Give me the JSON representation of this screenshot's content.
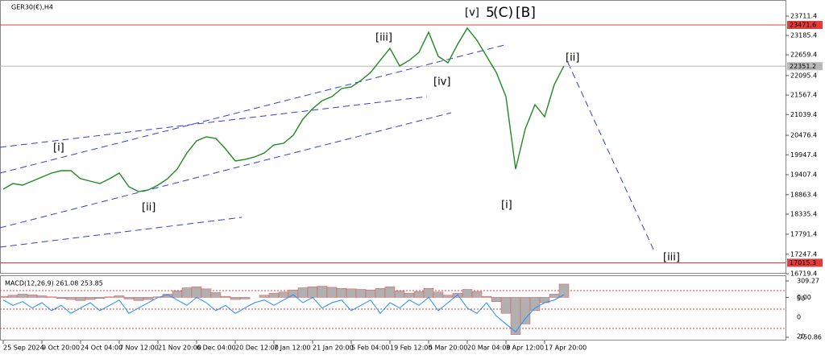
{
  "window_title": "GER30(€),H4",
  "chart_data": {
    "type": "line",
    "categories": [
      "25 Sep 2024",
      null,
      null,
      null,
      "9 Oct 20:00",
      null,
      null,
      null,
      "24 Oct 04:00",
      null,
      null,
      null,
      "7 Nov 12:00",
      null,
      null,
      null,
      "21 Nov 20:00",
      null,
      null,
      null,
      "6 Dec 04:00",
      null,
      null,
      null,
      "20 Dec 12:00",
      null,
      null,
      null,
      "7 Jan 12:00",
      null,
      null,
      null,
      "21 Jan 20:00",
      null,
      null,
      null,
      "5 Feb 04:00",
      null,
      null,
      null,
      "19 Feb 12:00",
      null,
      null,
      null,
      "5 Mar 20:00",
      null,
      null,
      null,
      "20 Mar 04:00",
      null,
      null,
      null,
      "3 Apr 12:00",
      null,
      null,
      null,
      "17 Apr 20:00",
      null,
      null,
      null
    ],
    "values": [
      19013,
      19166,
      19123,
      19232,
      19341,
      19451,
      19516,
      19516,
      19298,
      19232,
      19166,
      19298,
      19451,
      19079,
      18948,
      18992,
      19123,
      19298,
      19560,
      19997,
      20325,
      20434,
      20390,
      20106,
      19779,
      19822,
      19888,
      19997,
      20215,
      20259,
      20478,
      20915,
      21199,
      21417,
      21526,
      21745,
      21789,
      21964,
      22182,
      22510,
      22838,
      22357,
      22510,
      22728,
      23274,
      22619,
      22444,
      22947,
      23384,
      23056,
      22619,
      22182,
      21526,
      19560,
      20652,
      21308,
      20980,
      21854,
      22357,
      null
    ],
    "color": "#1f8a1f",
    "ylim": [
      16719.4,
      23711.4
    ],
    "yticks": [
      23711.4,
      23185.4,
      22659.4,
      22095.4,
      21567.4,
      21039.4,
      20476.4,
      19947.4,
      19407.4,
      18863.4,
      18335.4,
      17791.4,
      17247.4,
      16719.4
    ],
    "levels": [
      {
        "value": 23471.6,
        "color": "#e03c3c"
      },
      {
        "value": 22351.2,
        "color": "#b8b8b8"
      },
      {
        "value": 17015.3,
        "color": "#e03c3c"
      }
    ],
    "annotations": [
      "[i]",
      "[ii]",
      "[iii]",
      "[iv]",
      "[v]",
      "5",
      "(C)",
      "[B]",
      "[i]",
      "[ii]",
      "[iii]"
    ]
  },
  "macd": {
    "title": "MACD(12,26,9) 261.08 253.85",
    "ylim": [
      -750.86,
      309.27
    ],
    "yticks": [
      309.27,
      {
        "value": 0,
        "label": "0.00"
      },
      -750.86
    ],
    "overlay_labels": [
      "50",
      "0",
      "20"
    ],
    "histogram": [
      20,
      40,
      60,
      50,
      30,
      10,
      -20,
      -40,
      -60,
      -40,
      -20,
      10,
      30,
      -30,
      -60,
      -40,
      10,
      60,
      120,
      180,
      200,
      160,
      90,
      20,
      -40,
      -30,
      0,
      40,
      80,
      100,
      140,
      180,
      200,
      210,
      190,
      170,
      160,
      150,
      140,
      170,
      200,
      120,
      80,
      110,
      170,
      100,
      40,
      80,
      150,
      110,
      20,
      -80,
      -300,
      -700,
      -500,
      -250,
      -100,
      60,
      250,
      null
    ],
    "line": [
      -50,
      -150,
      -80,
      -200,
      -100,
      -250,
      -150,
      -300,
      -200,
      -100,
      -250,
      -150,
      -50,
      -300,
      -200,
      -100,
      0,
      50,
      -50,
      -150,
      0,
      -100,
      -250,
      -150,
      -300,
      -200,
      -100,
      -50,
      -150,
      -50,
      50,
      -100,
      0,
      -200,
      -100,
      -50,
      -250,
      -150,
      -50,
      -300,
      -100,
      -200,
      -50,
      -150,
      0,
      -250,
      -100,
      50,
      -200,
      -300,
      -100,
      -350,
      -500,
      -650,
      -400,
      -200,
      -100,
      -50,
      50,
      null
    ]
  }
}
